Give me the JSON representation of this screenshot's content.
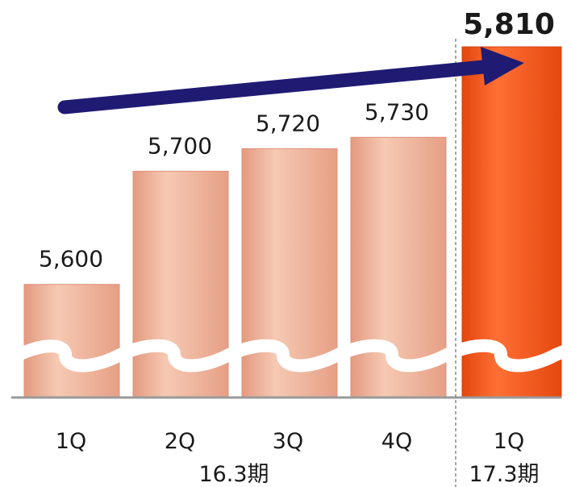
{
  "chart_data": {
    "type": "bar",
    "categories": [
      "1Q",
      "2Q",
      "3Q",
      "4Q",
      "1Q"
    ],
    "values": [
      5600,
      5700,
      5720,
      5730,
      5810
    ],
    "value_labels": [
      "5,600",
      "5,700",
      "5,720",
      "5,730",
      "5,810"
    ],
    "groups": [
      {
        "label": "16.3期",
        "categories": [
          0,
          1,
          2,
          3
        ]
      },
      {
        "label": "17.3期",
        "categories": [
          4
        ]
      }
    ],
    "highlight_index": 4,
    "axis_break": true,
    "trend_arrow": {
      "from": 0,
      "to": 4
    },
    "ylim": [
      5500,
      5830
    ],
    "colors": {
      "bar_light": "#f0b59c",
      "bar_light_edge": "#e0917a",
      "bar_highlight": "#f25a1e",
      "bar_highlight_edge": "#d8420c",
      "arrow": "#1f1b73",
      "baseline": "#9a9a9a",
      "divider": "#8a8a8a"
    }
  }
}
